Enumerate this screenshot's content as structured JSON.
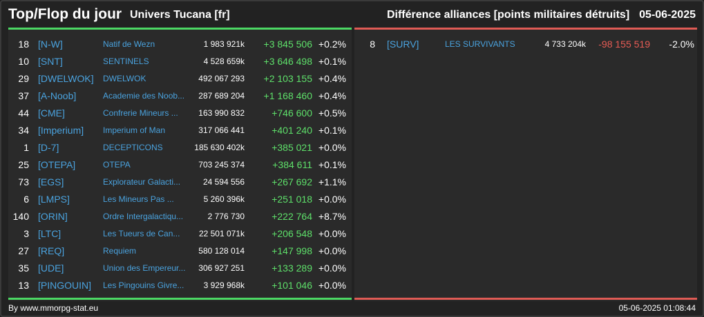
{
  "header": {
    "title": "Top/Flop du jour",
    "universe": "Univers Tucana [fr]",
    "subject": "Différence alliances [points militaires détruits]",
    "date": "05-06-2025"
  },
  "colors": {
    "positive": "#5ee06a",
    "negative": "#e85c55",
    "link": "#4aa3df",
    "top_bar": "#4cd964",
    "flop_bar": "#e05b55"
  },
  "top": [
    {
      "rank": "18",
      "tag": "[N-W]",
      "name": "Natif de Wezn",
      "points": "1 983 921k",
      "diff": "+3 845 506",
      "pct": "+0.2%"
    },
    {
      "rank": "10",
      "tag": "[SNT]",
      "name": "SENTINELS",
      "points": "4 528 659k",
      "diff": "+3 646 498",
      "pct": "+0.1%"
    },
    {
      "rank": "29",
      "tag": "[DWELWOK]",
      "name": "DWELWOK",
      "points": "492 067 293",
      "diff": "+2 103 155",
      "pct": "+0.4%"
    },
    {
      "rank": "37",
      "tag": "[A-Noob]",
      "name": "Academie des Noob...",
      "points": "287 689 204",
      "diff": "+1 168 460",
      "pct": "+0.4%"
    },
    {
      "rank": "44",
      "tag": "[CME]",
      "name": "Confrerie Mineurs ...",
      "points": "163 990 832",
      "diff": "+746 600",
      "pct": "+0.5%"
    },
    {
      "rank": "34",
      "tag": "[Imperium]",
      "name": "Imperium of Man",
      "points": "317 066 441",
      "diff": "+401 240",
      "pct": "+0.1%"
    },
    {
      "rank": "1",
      "tag": "[D-7]",
      "name": "DECEPTICONS",
      "points": "185 630 402k",
      "diff": "+385 021",
      "pct": "+0.0%"
    },
    {
      "rank": "25",
      "tag": "[OTEPA]",
      "name": "OTEPA",
      "points": "703 245 374",
      "diff": "+384 611",
      "pct": "+0.1%"
    },
    {
      "rank": "73",
      "tag": "[EGS]",
      "name": "Explorateur Galacti...",
      "points": "24 594 556",
      "diff": "+267 692",
      "pct": "+1.1%"
    },
    {
      "rank": "6",
      "tag": "[LMPS]",
      "name": "Les Mineurs Pas ...",
      "points": "5 260 396k",
      "diff": "+251 018",
      "pct": "+0.0%"
    },
    {
      "rank": "140",
      "tag": "[ORIN]",
      "name": "Ordre Intergalactiqu...",
      "points": "2 776 730",
      "diff": "+222 764",
      "pct": "+8.7%"
    },
    {
      "rank": "3",
      "tag": "[LTC]",
      "name": "Les Tueurs de Can...",
      "points": "22 501 071k",
      "diff": "+206 548",
      "pct": "+0.0%"
    },
    {
      "rank": "27",
      "tag": "[REQ]",
      "name": "Requiem",
      "points": "580 128 014",
      "diff": "+147 998",
      "pct": "+0.0%"
    },
    {
      "rank": "35",
      "tag": "[UDE]",
      "name": "Union des Empereur...",
      "points": "306 927 251",
      "diff": "+133 289",
      "pct": "+0.0%"
    },
    {
      "rank": "13",
      "tag": "[PINGOUIN]",
      "name": "Les Pingouins Givre...",
      "points": "3 929 968k",
      "diff": "+101 046",
      "pct": "+0.0%"
    }
  ],
  "flop": [
    {
      "rank": "8",
      "tag": "[SURV]",
      "name": "LES SURVIVANTS",
      "points": "4 733 204k",
      "diff": "-98 155 519",
      "pct": "-2.0%"
    }
  ],
  "footer": {
    "source": "By www.mmorpg-stat.eu",
    "timestamp": "05-06-2025 01:08:44"
  }
}
